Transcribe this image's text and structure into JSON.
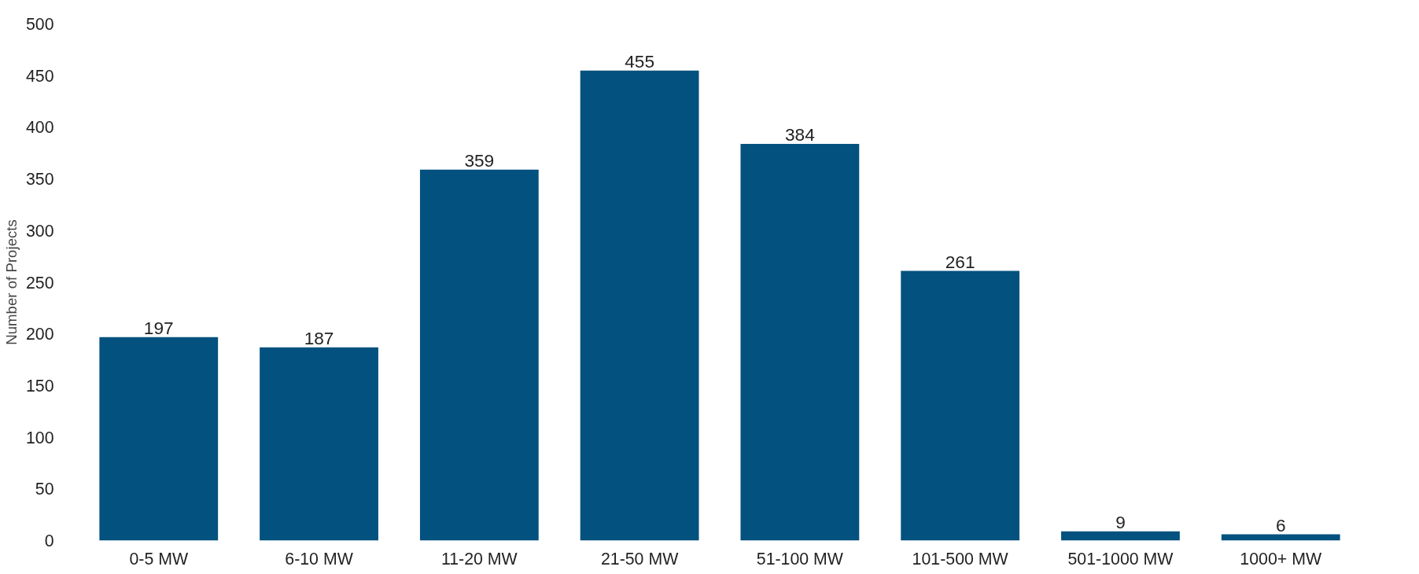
{
  "chart_data": {
    "type": "bar",
    "ylabel": "Number of Projects",
    "categories": [
      "0-5 MW",
      "6-10 MW",
      "11-20 MW",
      "21-50 MW",
      "51-100 MW",
      "101-500 MW",
      "501-1000 MW",
      "1000+ MW"
    ],
    "values": [
      197,
      187,
      359,
      455,
      384,
      261,
      9,
      6
    ],
    "color": "#03517e",
    "ylim": [
      0,
      500
    ],
    "yticks": [
      0,
      50,
      100,
      150,
      200,
      250,
      300,
      350,
      400,
      450,
      500
    ],
    "grid": false,
    "data_labels": true
  }
}
